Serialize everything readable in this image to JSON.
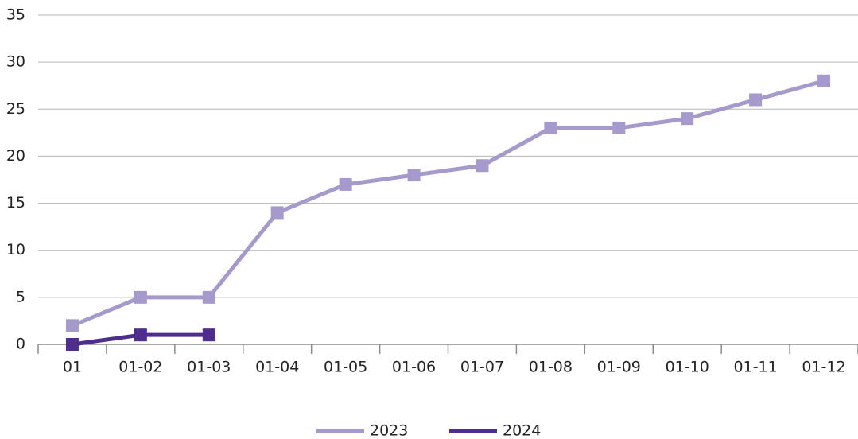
{
  "chart_data": {
    "type": "line",
    "categories": [
      "01",
      "01-02",
      "01-03",
      "01-04",
      "01-05",
      "01-06",
      "01-07",
      "01-08",
      "01-09",
      "01-10",
      "01-11",
      "01-12"
    ],
    "series": [
      {
        "name": "2023",
        "color": "#a59acb",
        "values": [
          2,
          5,
          5,
          14,
          17,
          18,
          19,
          23,
          23,
          24,
          26,
          28
        ]
      },
      {
        "name": "2024",
        "color": "#4f2d8f",
        "values": [
          0,
          1,
          1,
          null,
          null,
          null,
          null,
          null,
          null,
          null,
          null,
          null
        ]
      }
    ],
    "ylim": [
      0,
      35
    ],
    "yticks": [
      0,
      5,
      10,
      15,
      20,
      25,
      30,
      35
    ],
    "grid": true,
    "legend": "bottom"
  }
}
